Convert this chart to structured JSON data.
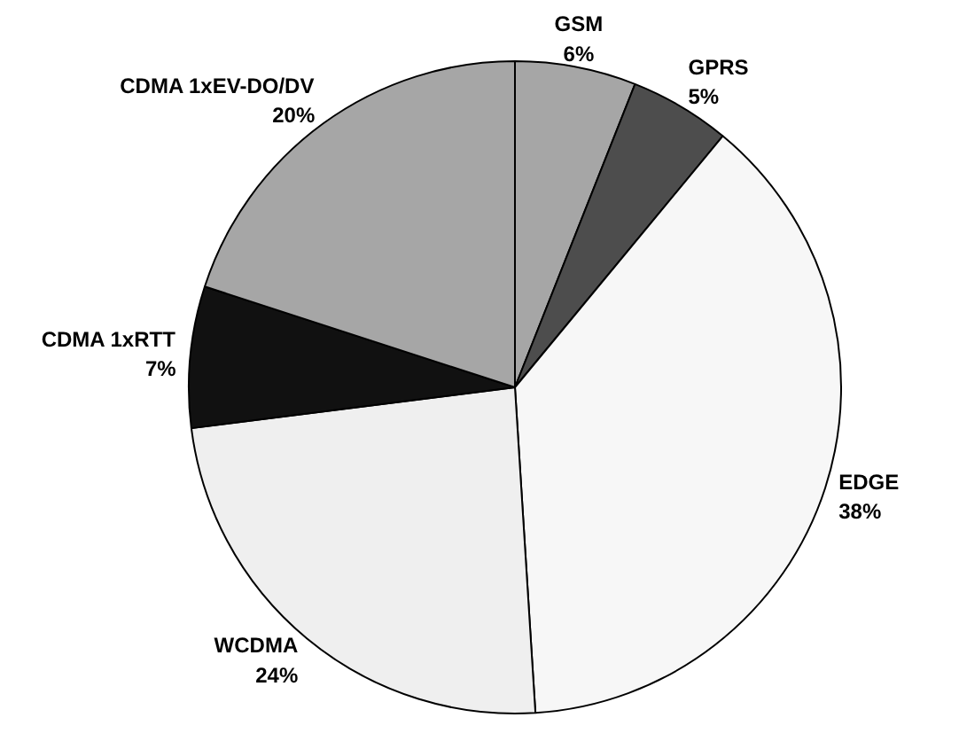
{
  "chart_data": {
    "type": "pie",
    "categories": [
      "GSM",
      "GPRS",
      "EDGE",
      "WCDMA",
      "CDMA 1xRTT",
      "CDMA 1xEV-DO/DV"
    ],
    "values": [
      6,
      5,
      38,
      24,
      7,
      20
    ],
    "colors": [
      "#a6a6a6",
      "#4d4d4d",
      "#f7f7f7",
      "#efefef",
      "#111111",
      "#a6a6a6"
    ],
    "value_labels": [
      "6%",
      "5%",
      "38%",
      "24%",
      "7%",
      "20%"
    ]
  }
}
